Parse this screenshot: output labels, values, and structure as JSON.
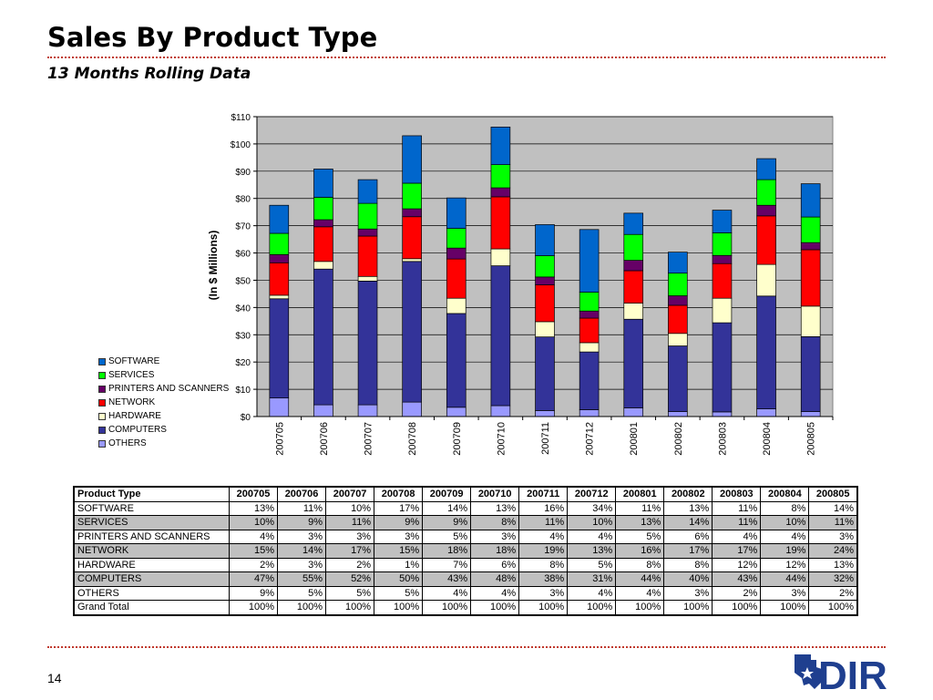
{
  "slide": {
    "title": "Sales By Product Type",
    "subtitle": "13 Months Rolling Data",
    "page_number": "14",
    "rule_color": "#c0392b"
  },
  "logo": {
    "text": "DIR",
    "color": "#1f3f8f",
    "icon": "texas-star-logo-icon"
  },
  "chart_data": {
    "type": "bar",
    "stacked": true,
    "categories": [
      "200705",
      "200706",
      "200707",
      "200708",
      "200709",
      "200710",
      "200711",
      "200712",
      "200801",
      "200802",
      "200803",
      "200804",
      "200805"
    ],
    "ylabel": "(In $ Millions)",
    "ylim": [
      0,
      110
    ],
    "yticks": [
      0,
      10,
      20,
      30,
      40,
      50,
      60,
      70,
      80,
      90,
      100,
      110
    ],
    "y_tick_labels": [
      "$0",
      "$10",
      "$20",
      "$30",
      "$40",
      "$50",
      "$60",
      "$70",
      "$80",
      "$90",
      "$100",
      "$110"
    ],
    "grid": true,
    "legend_position": "left",
    "series": [
      {
        "name": "OTHERS",
        "color": "#9999ff",
        "values": [
          6.8,
          4.3,
          4.3,
          5.3,
          3.4,
          4.0,
          2.2,
          2.5,
          3.2,
          1.8,
          1.7,
          2.8,
          1.8
        ]
      },
      {
        "name": "COMPUTERS",
        "color": "#333399",
        "values": [
          36.4,
          49.8,
          45.4,
          51.6,
          34.4,
          51.3,
          27.0,
          21.2,
          32.5,
          24.1,
          32.7,
          41.4,
          27.5
        ]
      },
      {
        "name": "HARDWARE",
        "color": "#ffffcc",
        "values": [
          1.3,
          2.8,
          1.7,
          1.0,
          5.6,
          6.2,
          5.6,
          3.4,
          5.9,
          4.6,
          9.0,
          11.6,
          11.2
        ]
      },
      {
        "name": "NETWORK",
        "color": "#ff0000",
        "values": [
          11.9,
          12.7,
          14.8,
          15.4,
          14.4,
          19.1,
          13.5,
          9.0,
          11.9,
          10.3,
          12.7,
          17.8,
          20.7
        ]
      },
      {
        "name": "PRINTERS AND SCANNERS",
        "color": "#660066",
        "values": [
          3.0,
          2.6,
          2.6,
          2.9,
          4.0,
          3.3,
          2.9,
          2.6,
          3.8,
          3.5,
          3.0,
          3.9,
          2.6
        ]
      },
      {
        "name": "SERVICES",
        "color": "#00ff00",
        "values": [
          7.8,
          8.2,
          9.4,
          9.4,
          7.2,
          8.5,
          7.8,
          6.9,
          9.5,
          8.3,
          8.3,
          9.4,
          9.4
        ]
      },
      {
        "name": "SOFTWARE",
        "color": "#0066cc",
        "values": [
          10.3,
          10.4,
          8.7,
          17.4,
          11.2,
          13.8,
          11.4,
          23.0,
          7.8,
          7.7,
          8.3,
          7.7,
          12.2
        ]
      }
    ],
    "legend_order": [
      "SOFTWARE",
      "SERVICES",
      "PRINTERS AND SCANNERS",
      "NETWORK",
      "HARDWARE",
      "COMPUTERS",
      "OTHERS"
    ]
  },
  "table": {
    "header": [
      "Product Type",
      "200705",
      "200706",
      "200707",
      "200708",
      "200709",
      "200710",
      "200711",
      "200712",
      "200801",
      "200802",
      "200803",
      "200804",
      "200805"
    ],
    "rows": [
      {
        "cells": [
          "SOFTWARE",
          "13%",
          "11%",
          "10%",
          "17%",
          "14%",
          "13%",
          "16%",
          "34%",
          "11%",
          "13%",
          "11%",
          "8%",
          "14%"
        ],
        "shaded": false
      },
      {
        "cells": [
          "SERVICES",
          "10%",
          "9%",
          "11%",
          "9%",
          "9%",
          "8%",
          "11%",
          "10%",
          "13%",
          "14%",
          "11%",
          "10%",
          "11%"
        ],
        "shaded": true
      },
      {
        "cells": [
          "PRINTERS AND SCANNERS",
          "4%",
          "3%",
          "3%",
          "3%",
          "5%",
          "3%",
          "4%",
          "4%",
          "5%",
          "6%",
          "4%",
          "4%",
          "3%"
        ],
        "shaded": false
      },
      {
        "cells": [
          "NETWORK",
          "15%",
          "14%",
          "17%",
          "15%",
          "18%",
          "18%",
          "19%",
          "13%",
          "16%",
          "17%",
          "17%",
          "19%",
          "24%"
        ],
        "shaded": true
      },
      {
        "cells": [
          "HARDWARE",
          "2%",
          "3%",
          "2%",
          "1%",
          "7%",
          "6%",
          "8%",
          "5%",
          "8%",
          "8%",
          "12%",
          "12%",
          "13%"
        ],
        "shaded": false
      },
      {
        "cells": [
          "COMPUTERS",
          "47%",
          "55%",
          "52%",
          "50%",
          "43%",
          "48%",
          "38%",
          "31%",
          "44%",
          "40%",
          "43%",
          "44%",
          "32%"
        ],
        "shaded": true
      },
      {
        "cells": [
          "OTHERS",
          "9%",
          "5%",
          "5%",
          "5%",
          "4%",
          "4%",
          "3%",
          "4%",
          "4%",
          "3%",
          "2%",
          "3%",
          "2%"
        ],
        "shaded": false
      },
      {
        "cells": [
          "Grand Total",
          "100%",
          "100%",
          "100%",
          "100%",
          "100%",
          "100%",
          "100%",
          "100%",
          "100%",
          "100%",
          "100%",
          "100%",
          "100%"
        ],
        "shaded": false
      }
    ]
  }
}
